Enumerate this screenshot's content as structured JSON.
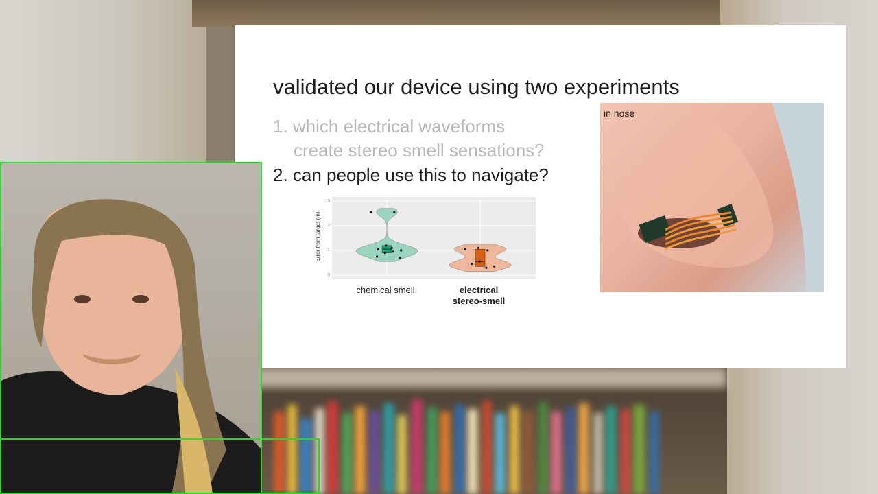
{
  "slide": {
    "title": "validated our device using two experiments",
    "items": [
      {
        "number": "1.",
        "text_line1": "1. which electrical waveforms",
        "text_line2": "create stereo smell sensations?",
        "state": "dimmed"
      },
      {
        "number": "2.",
        "text": "2. can people use this to navigate?",
        "state": "active"
      }
    ],
    "chart": {
      "ylabel": "Error from target (m)",
      "yticks": [
        "0",
        "1",
        "2",
        "3"
      ],
      "categories": [
        "chemical smell",
        "electrical",
        "stereo-smell"
      ]
    },
    "photo": {
      "label": "in nose"
    }
  },
  "chart_data": {
    "type": "violin",
    "ylabel": "Error from target (m)",
    "ylim": [
      0,
      3
    ],
    "categories": [
      "chemical smell",
      "electrical stereo-smell"
    ],
    "series": [
      {
        "category": "chemical smell",
        "points": [
          2.55,
          2.55,
          1.2,
          1.05,
          1.0,
          0.95,
          0.9,
          0.75,
          0.7,
          1.1
        ],
        "color": "#7fcdb0"
      },
      {
        "category": "electrical stereo-smell",
        "points": [
          1.05,
          1.0,
          0.55,
          0.45,
          0.35,
          0.3,
          1.1
        ],
        "color": "#f2a77f"
      }
    ]
  },
  "colors": {
    "detection_box": "#22dd22",
    "slide_bg": "#ffffff",
    "title_text": "#1d1d1d",
    "dimmed_text": "#b7b7b7"
  }
}
